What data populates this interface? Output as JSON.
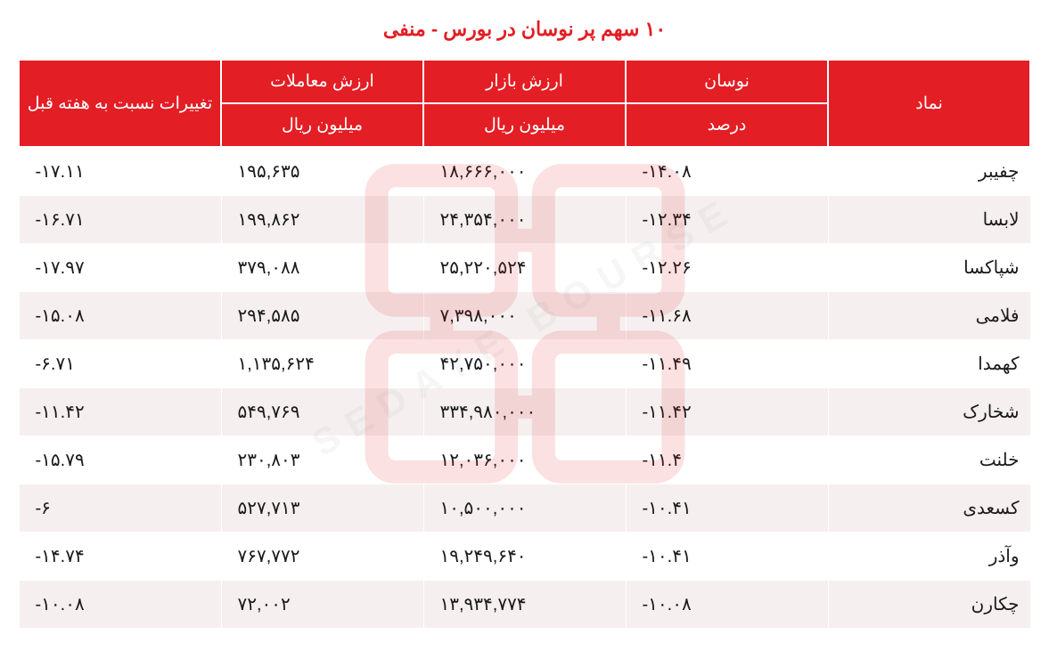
{
  "title": "۱۰ سهم پر نوسان در بورس - منفی",
  "headers": {
    "symbol": "نماد",
    "fluctuation": "نوسان",
    "fluctuation_sub": "درصد",
    "market_value": "ارزش بازار",
    "market_value_sub": "میلیون ریال",
    "trade_value": "ارزش معاملات",
    "trade_value_sub": "میلیون ریال",
    "change": "تغییرات نسبت به هفته قبل"
  },
  "rows": [
    {
      "symbol": "چفیبر",
      "fluctuation": "-۱۴.۰۸",
      "market_value": "۱۸,۶۶۶,۰۰۰",
      "trade_value": "۱۹۵,۶۳۵",
      "change": "-۱۷.۱۱"
    },
    {
      "symbol": "لابسا",
      "fluctuation": "-۱۲.۳۴",
      "market_value": "۲۴,۳۵۴,۰۰۰",
      "trade_value": "۱۹۹,۸۶۲",
      "change": "-۱۶.۷۱"
    },
    {
      "symbol": "شپاکسا",
      "fluctuation": "-۱۲.۲۶",
      "market_value": "۲۵,۲۲۰,۵۲۴",
      "trade_value": "۳۷۹,۰۸۸",
      "change": "-۱۷.۹۷"
    },
    {
      "symbol": "فلامی",
      "fluctuation": "-۱۱.۶۸",
      "market_value": "۷,۳۹۸,۰۰۰",
      "trade_value": "۲۹۴,۵۸۵",
      "change": "-۱۵.۰۸"
    },
    {
      "symbol": "کهمدا",
      "fluctuation": "-۱۱.۴۹",
      "market_value": "۴۲,۷۵۰,۰۰۰",
      "trade_value": "۱,۱۳۵,۶۲۴",
      "change": "-۶.۷۱"
    },
    {
      "symbol": "شخارک",
      "fluctuation": "-۱۱.۴۲",
      "market_value": "۳۳۴,۹۸۰,۰۰۰",
      "trade_value": "۵۴۹,۷۶۹",
      "change": "-۱۱.۴۲"
    },
    {
      "symbol": "خلنت",
      "fluctuation": "-۱۱.۴",
      "market_value": "۱۲,۰۳۶,۰۰۰",
      "trade_value": "۲۳۰,۸۰۳",
      "change": "-۱۵.۷۹"
    },
    {
      "symbol": "کسعدی",
      "fluctuation": "-۱۰.۴۱",
      "market_value": "۱۰,۵۰۰,۰۰۰",
      "trade_value": "۵۲۷,۷۱۳",
      "change": "-۶"
    },
    {
      "symbol": "وآذر",
      "fluctuation": "-۱۰.۴۱",
      "market_value": "۱۹,۲۴۹,۶۴۰",
      "trade_value": "۷۶۷,۷۷۲",
      "change": "-۱۴.۷۴"
    },
    {
      "symbol": "چکارن",
      "fluctuation": "-۱۰.۰۸",
      "market_value": "۱۳,۹۳۴,۷۷۴",
      "trade_value": "۷۲,۰۰۲",
      "change": "-۱۰.۰۸"
    }
  ],
  "style": {
    "header_bg": "#e31e24",
    "header_fg": "#ffffff",
    "row_odd_bg": "#ffffff",
    "row_even_bg": "#f5f0ef",
    "text_color": "#1a1a1a",
    "title_color": "#e31e24",
    "title_fontsize": 22,
    "cell_fontsize": 20,
    "header_fontsize": 19,
    "border_color": "#ffffff",
    "type": "table",
    "dir": "rtl",
    "columns": [
      "symbol",
      "fluctuation",
      "market_value",
      "trade_value",
      "change"
    ],
    "col_align": {
      "symbol": "right",
      "fluctuation": "left",
      "market_value": "left",
      "trade_value": "left",
      "change": "left"
    }
  },
  "watermark": {
    "text": "SEDAYE BOURSE",
    "logo_color": "#e31e24",
    "logo_opacity": 0.13,
    "text_opacity": 0.07
  }
}
